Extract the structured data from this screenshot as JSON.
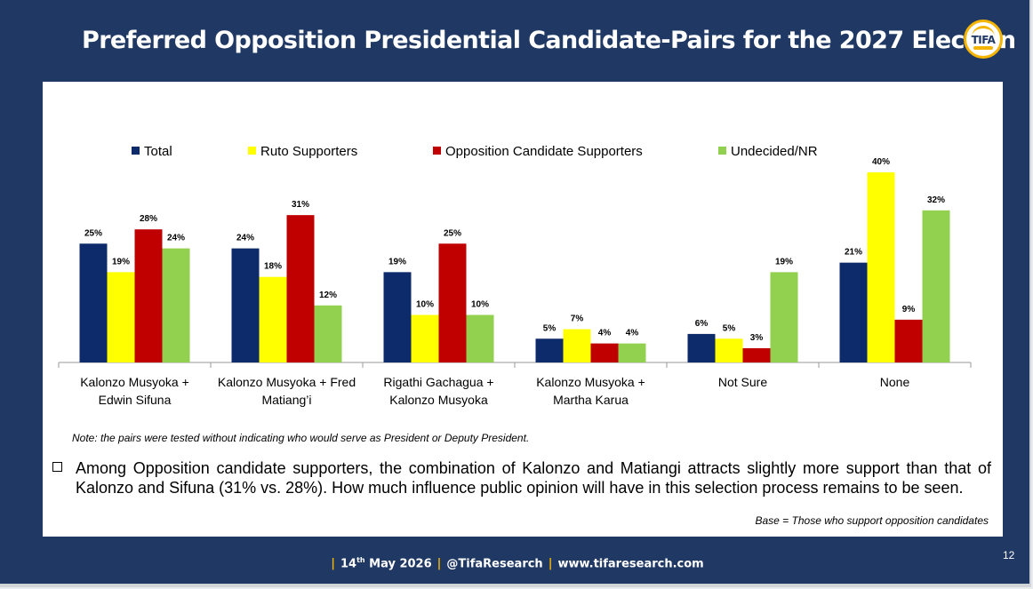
{
  "slide": {
    "title": "Preferred Opposition Presidential Candidate-Pairs for the 2027 Election",
    "logo_text": "TIFA",
    "note": "Note: the pairs were tested without indicating who would serve as President or Deputy President.",
    "bullet": "Among Opposition candidate supporters, the combination of Kalonzo and Matiangi attracts slightly more support than that of Kalonzo and Sifuna (31% vs. 28%).  How much influence public opinion will have in this selection process remains to be seen.",
    "base": "Base = Those who support opposition candidates",
    "footer": {
      "date_day": "14",
      "date_suffix": "th",
      "date_rest": " May 2026",
      "handle": "@TifaResearch",
      "site": "www.tifaresearch.com"
    },
    "page_number": "12"
  },
  "chart_data": {
    "type": "bar",
    "categories": [
      [
        "Kalonzo Musyoka +",
        "Edwin Sifuna"
      ],
      [
        "Kalonzo Musyoka + Fred",
        "Matiang’i"
      ],
      [
        "Rigathi Gachagua +",
        "Kalonzo Musyoka"
      ],
      [
        "Kalonzo Musyoka +",
        "Martha Karua"
      ],
      [
        "Not Sure"
      ],
      [
        "None"
      ]
    ],
    "series": [
      {
        "name": "Total",
        "color": "#0d2a6b",
        "values": [
          25,
          24,
          19,
          5,
          6,
          21
        ]
      },
      {
        "name": "Ruto Supporters",
        "color": "#ffff00",
        "values": [
          19,
          18,
          10,
          7,
          5,
          40
        ]
      },
      {
        "name": "Opposition Candidate Supporters",
        "color": "#c00000",
        "values": [
          28,
          31,
          25,
          4,
          3,
          9
        ]
      },
      {
        "name": "Undecided/NR",
        "color": "#92d050",
        "values": [
          24,
          12,
          10,
          4,
          19,
          32
        ]
      }
    ],
    "value_suffix": "%",
    "ylim": [
      0,
      40
    ],
    "grid": false,
    "legend_position": "top"
  }
}
